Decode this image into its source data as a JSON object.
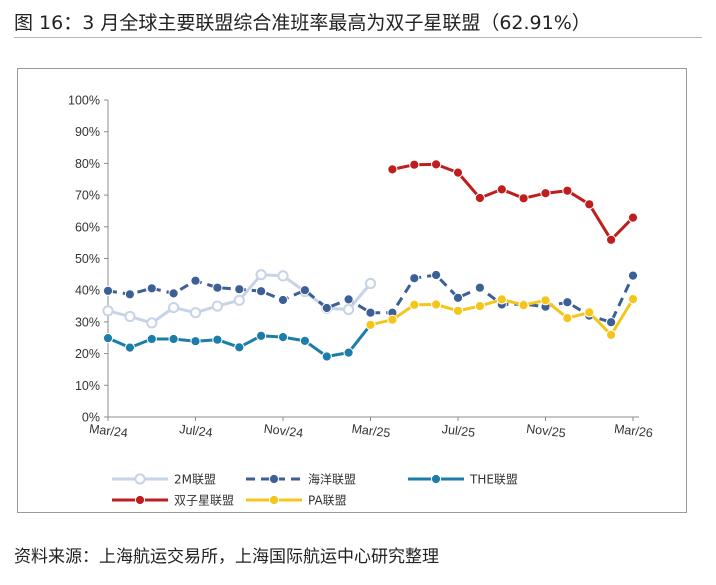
{
  "header": {
    "title": "图 16：3 月全球主要联盟综合准班率最高为双子星联盟（62.91%）"
  },
  "footer": {
    "source": "资料来源：上海航运交易所，上海国际航运中心研究整理"
  },
  "chart_data": {
    "type": "line",
    "title": "",
    "xlabel": "",
    "ylabel": "",
    "ylim": [
      0,
      100
    ],
    "y_ticks": [
      "0%",
      "10%",
      "20%",
      "30%",
      "40%",
      "50%",
      "60%",
      "70%",
      "80%",
      "90%",
      "100%"
    ],
    "x_tick_labels": [
      "Mar/24",
      "Jul/24",
      "Nov/24",
      "Mar/25",
      "Jul/25",
      "Nov/25",
      "Mar/26"
    ],
    "x": [
      "2024-03",
      "2024-04",
      "2024-05",
      "2024-06",
      "2024-07",
      "2024-08",
      "2024-09",
      "2024-10",
      "2024-11",
      "2024-12",
      "2025-01",
      "2025-02",
      "2025-03",
      "2025-04",
      "2025-05",
      "2025-06",
      "2025-07",
      "2025-08",
      "2025-09",
      "2025-10",
      "2025-11",
      "2025-12",
      "2026-01",
      "2026-02",
      "2026-03"
    ],
    "grid": false,
    "legend_position": "bottom",
    "series": [
      {
        "name": "2M联盟",
        "color": "#c7d3e6",
        "style": "solid",
        "values": [
          33.5,
          31.7,
          29.7,
          34.5,
          32.9,
          35.0,
          36.8,
          44.9,
          44.5,
          39.6,
          34.3,
          33.9,
          42.1,
          null,
          null,
          null,
          null,
          null,
          null,
          null,
          null,
          null,
          null,
          null,
          null
        ]
      },
      {
        "name": "海洋联盟",
        "color": "#3c5f96",
        "style": "dashed",
        "values": [
          39.8,
          38.7,
          40.6,
          39.0,
          43.0,
          40.8,
          40.3,
          39.7,
          36.9,
          40.0,
          34.4,
          37.1,
          32.9,
          32.9,
          43.8,
          44.8,
          37.6,
          40.8,
          35.5,
          35.6,
          34.8,
          36.2,
          32.0,
          29.9,
          44.6
        ]
      },
      {
        "name": "THE联盟",
        "color": "#1c7ea8",
        "style": "solid",
        "values": [
          24.9,
          21.9,
          24.6,
          24.6,
          23.9,
          24.4,
          22.0,
          25.6,
          25.2,
          24.0,
          19.1,
          20.3,
          29.1,
          null,
          null,
          null,
          null,
          null,
          null,
          null,
          null,
          null,
          null,
          null,
          null
        ]
      },
      {
        "name": "双子星联盟",
        "color": "#bf1e1e",
        "style": "solid",
        "values": [
          null,
          null,
          null,
          null,
          null,
          null,
          null,
          null,
          null,
          null,
          null,
          null,
          null,
          78.1,
          79.6,
          79.7,
          77.1,
          69.1,
          71.8,
          69.0,
          70.6,
          71.4,
          67.1,
          55.9,
          62.9
        ]
      },
      {
        "name": "PA联盟",
        "color": "#f5c51c",
        "style": "solid",
        "values": [
          null,
          null,
          null,
          null,
          null,
          null,
          null,
          null,
          null,
          null,
          null,
          null,
          29.1,
          30.7,
          35.4,
          35.5,
          33.5,
          35.0,
          37.1,
          35.3,
          36.8,
          31.2,
          33.0,
          25.9,
          37.2
        ]
      }
    ]
  }
}
